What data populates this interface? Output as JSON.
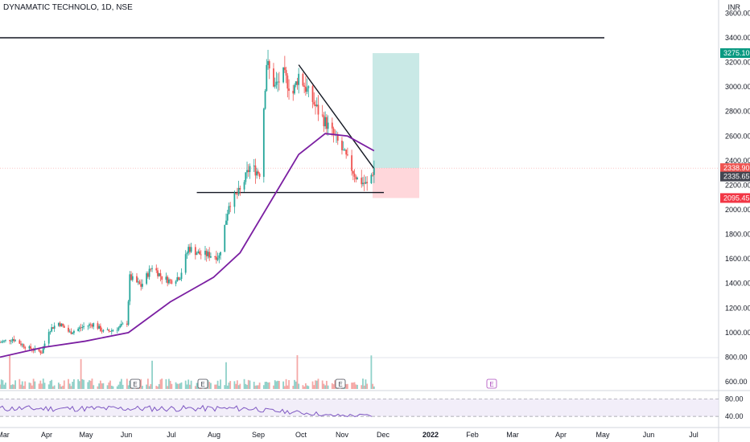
{
  "header": {
    "title": "DYNAMATIC TECHNOLO, 1D, NSE",
    "currency": "INR"
  },
  "colors": {
    "up": "#26a69a",
    "down": "#ef5350",
    "ma": "#7b1fa2",
    "rsi": "#7e57c2",
    "target_zone": "#b2dfdb",
    "stop_zone": "#ffcdd2"
  },
  "chart_data": {
    "type": "candlestick",
    "symbol": "DYNAMATIC TECHNOLO",
    "interval": "1D",
    "exchange": "NSE",
    "y_ticks": [
      "3600.00",
      "3400.00",
      "3200.00",
      "3000.00",
      "2800.00",
      "2600.00",
      "2400.00",
      "2200.00",
      "2000.00",
      "1800.00",
      "1600.00",
      "1400.00",
      "1200.00",
      "1000.00",
      "800.00",
      "600.00"
    ],
    "x_ticks": [
      "Mar",
      "Apr",
      "May",
      "Jun",
      "Jul",
      "Aug",
      "Sep",
      "Oct",
      "Nov",
      "Dec",
      "2022",
      "Feb",
      "Mar",
      "Apr",
      "May",
      "Jun",
      "Jul"
    ],
    "price_tags": [
      {
        "label": "3275.10",
        "value": 3275.1,
        "color": "#089981"
      },
      {
        "label": "2338.90",
        "value": 2338.9,
        "color": "#ef5350"
      },
      {
        "label": "2335.65",
        "value": 2335.65,
        "color": "#434651"
      },
      {
        "label": "2095.45",
        "value": 2095.45,
        "color": "#f23645"
      }
    ],
    "earnings_markers": [
      "E",
      "E",
      "E",
      "E"
    ],
    "close_path": [
      [
        "2021-03-01",
        920
      ],
      [
        "2021-03-10",
        950
      ],
      [
        "2021-03-20",
        880
      ],
      [
        "2021-03-31",
        840
      ],
      [
        "2021-04-05",
        1020
      ],
      [
        "2021-04-12",
        1080
      ],
      [
        "2021-04-20",
        1000
      ],
      [
        "2021-04-30",
        1050
      ],
      [
        "2021-05-07",
        1070
      ],
      [
        "2021-05-15",
        1000
      ],
      [
        "2021-05-25",
        1040
      ],
      [
        "2021-05-31",
        1080
      ],
      [
        "2021-06-02",
        1450
      ],
      [
        "2021-06-10",
        1380
      ],
      [
        "2021-06-18",
        1540
      ],
      [
        "2021-06-25",
        1450
      ],
      [
        "2021-07-01",
        1420
      ],
      [
        "2021-07-08",
        1460
      ],
      [
        "2021-07-14",
        1690
      ],
      [
        "2021-07-22",
        1640
      ],
      [
        "2021-07-31",
        1630
      ],
      [
        "2021-08-05",
        1620
      ],
      [
        "2021-08-12",
        2050
      ],
      [
        "2021-08-20",
        2150
      ],
      [
        "2021-08-27",
        2350
      ],
      [
        "2021-09-03",
        2300
      ],
      [
        "2021-09-08",
        3200
      ],
      [
        "2021-09-14",
        3000
      ],
      [
        "2021-09-20",
        3100
      ],
      [
        "2021-09-27",
        2950
      ],
      [
        "2021-10-01",
        3100
      ],
      [
        "2021-10-08",
        2950
      ],
      [
        "2021-10-15",
        2800
      ],
      [
        "2021-10-22",
        2680
      ],
      [
        "2021-10-29",
        2550
      ],
      [
        "2021-11-05",
        2400
      ],
      [
        "2021-11-12",
        2250
      ],
      [
        "2021-11-19",
        2200
      ],
      [
        "2021-11-24",
        2335.65
      ]
    ],
    "moving_average": [
      [
        "2021-03-01",
        800
      ],
      [
        "2021-04-01",
        880
      ],
      [
        "2021-05-01",
        930
      ],
      [
        "2021-06-01",
        1000
      ],
      [
        "2021-07-01",
        1250
      ],
      [
        "2021-08-01",
        1450
      ],
      [
        "2021-08-20",
        1650
      ],
      [
        "2021-09-10",
        2050
      ],
      [
        "2021-10-01",
        2450
      ],
      [
        "2021-10-20",
        2620
      ],
      [
        "2021-11-05",
        2600
      ],
      [
        "2021-11-24",
        2480
      ]
    ],
    "trend_lines": [
      {
        "name": "resistance",
        "from": [
          "2021-03-01",
          3400
        ],
        "to": [
          "2022-05-01",
          3400
        ]
      },
      {
        "name": "support",
        "from": [
          "2021-07-20",
          2140
        ],
        "to": [
          "2021-12-01",
          2140
        ]
      },
      {
        "name": "descending",
        "from": [
          "2021-10-01",
          3180
        ],
        "to": [
          "2021-11-24",
          2335
        ]
      }
    ],
    "position": {
      "entry": 2338.9,
      "target": 3275.1,
      "stop": 2095.45
    },
    "rsi": {
      "levels": [
        "80.00",
        "40.00"
      ]
    }
  }
}
